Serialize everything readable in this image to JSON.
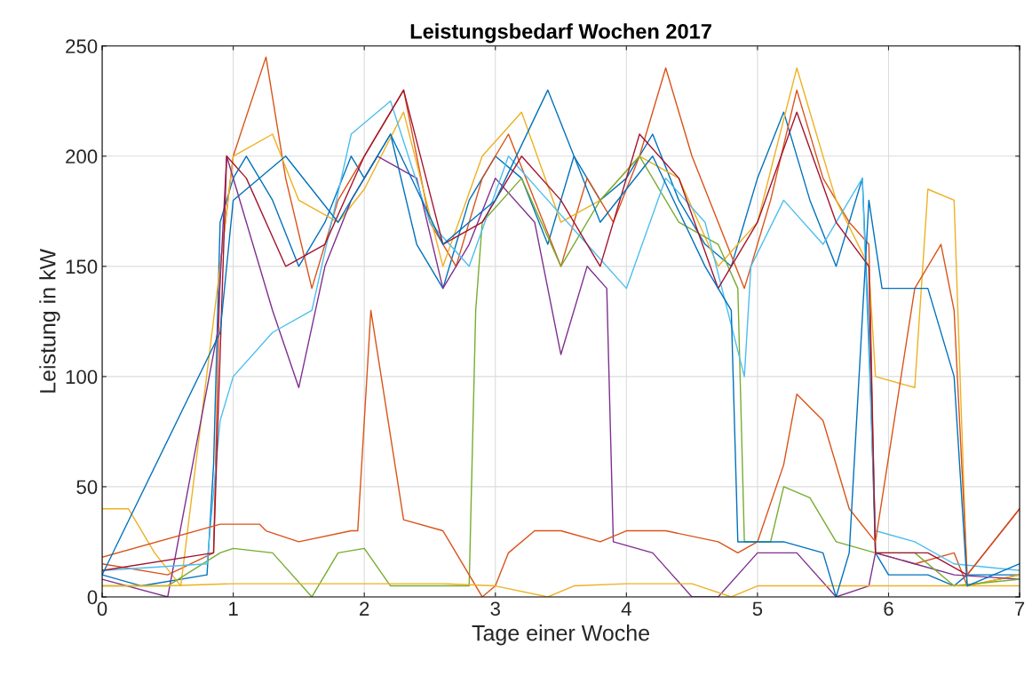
{
  "chart_data": {
    "type": "line",
    "title": "Leistungsbedarf Wochen 2017",
    "xlabel": "Tage einer Woche",
    "ylabel": "Leistung in kW",
    "xlim": [
      0,
      7
    ],
    "xticks": [
      0,
      1,
      2,
      3,
      4,
      5,
      6,
      7
    ],
    "ylim": [
      0,
      250
    ],
    "yticks": [
      0,
      50,
      100,
      150,
      200,
      250
    ],
    "grid": true,
    "line_style": "solid",
    "marker": "none",
    "series": [
      {
        "color": "#0072bd",
        "x": [
          0,
          0.3,
          0.8,
          0.85,
          0.9,
          1.0,
          1.1,
          1.3,
          1.5,
          1.7,
          1.9,
          2.0,
          2.2,
          2.4,
          2.6,
          2.8,
          3.0,
          3.2,
          3.4,
          3.6,
          3.8,
          4.0,
          4.2,
          4.4,
          4.6,
          4.8,
          5.0,
          5.2,
          5.4,
          5.6,
          5.8,
          5.85,
          5.9,
          6.0,
          6.3,
          6.5,
          6.6,
          7.0
        ],
        "values": [
          10,
          5,
          10,
          60,
          170,
          190,
          200,
          180,
          150,
          170,
          200,
          190,
          210,
          160,
          140,
          180,
          200,
          190,
          160,
          200,
          180,
          190,
          210,
          180,
          160,
          150,
          190,
          220,
          180,
          150,
          190,
          120,
          20,
          10,
          10,
          5,
          10,
          10
        ]
      },
      {
        "color": "#d95319",
        "x": [
          0,
          0.5,
          0.85,
          0.9,
          1.0,
          1.25,
          1.4,
          1.6,
          1.8,
          2.0,
          2.3,
          2.5,
          2.7,
          2.9,
          3.1,
          3.3,
          3.5,
          3.7,
          3.9,
          4.1,
          4.3,
          4.5,
          4.7,
          4.9,
          5.1,
          5.3,
          5.5,
          5.7,
          5.85,
          5.9,
          6.2,
          6.5,
          6.6,
          7
        ],
        "values": [
          15,
          10,
          20,
          150,
          200,
          245,
          190,
          140,
          180,
          200,
          230,
          170,
          150,
          190,
          210,
          180,
          150,
          190,
          170,
          200,
          240,
          200,
          170,
          140,
          180,
          230,
          190,
          170,
          160,
          20,
          15,
          20,
          5,
          10
        ]
      },
      {
        "color": "#edb120",
        "x": [
          0,
          0.2,
          0.4,
          0.6,
          0.9,
          1.0,
          1.3,
          1.5,
          1.8,
          2.0,
          2.3,
          2.6,
          2.9,
          3.2,
          3.5,
          3.8,
          4.1,
          4.4,
          4.7,
          5.0,
          5.3,
          5.6,
          5.85,
          5.9,
          6.2,
          6.3,
          6.5,
          6.6,
          7
        ],
        "values": [
          40,
          40,
          20,
          5,
          150,
          200,
          210,
          180,
          170,
          185,
          220,
          150,
          200,
          220,
          170,
          180,
          200,
          190,
          150,
          170,
          240,
          180,
          150,
          100,
          95,
          185,
          180,
          5,
          10
        ]
      },
      {
        "color": "#7e2f8e",
        "x": [
          0,
          0.5,
          0.88,
          0.95,
          1.1,
          1.3,
          1.5,
          1.7,
          1.9,
          2.1,
          2.4,
          2.6,
          2.8,
          3.0,
          3.3,
          3.5,
          3.7,
          3.85,
          3.9,
          4.2,
          4.5,
          4.7,
          5.0,
          5.3,
          5.6,
          5.85,
          5.9,
          6.2,
          6.5,
          7
        ],
        "values": [
          8,
          0,
          120,
          200,
          170,
          130,
          95,
          150,
          180,
          200,
          190,
          140,
          160,
          190,
          170,
          110,
          150,
          140,
          25,
          20,
          0,
          0,
          20,
          20,
          0,
          5,
          20,
          15,
          10,
          8
        ]
      },
      {
        "color": "#77ac30",
        "x": [
          0,
          0.5,
          0.9,
          1.0,
          1.3,
          1.6,
          1.8,
          2.0,
          2.2,
          2.5,
          2.8,
          2.85,
          2.9,
          3.2,
          3.5,
          3.8,
          4.1,
          4.4,
          4.7,
          4.85,
          4.9,
          5.1,
          5.2,
          5.4,
          5.6,
          5.9,
          6.2,
          6.5,
          7
        ],
        "values": [
          5,
          5,
          20,
          22,
          20,
          0,
          20,
          22,
          5,
          5,
          5,
          130,
          170,
          190,
          150,
          180,
          200,
          170,
          160,
          140,
          25,
          25,
          50,
          45,
          25,
          20,
          20,
          5,
          8
        ]
      },
      {
        "color": "#4dbeee",
        "x": [
          0,
          0.8,
          0.9,
          1.0,
          1.3,
          1.6,
          1.9,
          2.2,
          2.5,
          2.8,
          3.1,
          3.4,
          3.7,
          4.0,
          4.3,
          4.6,
          4.9,
          4.95,
          5.2,
          5.5,
          5.8,
          5.9,
          6.2,
          6.5,
          7
        ],
        "values": [
          12,
          15,
          80,
          100,
          120,
          130,
          210,
          225,
          170,
          150,
          200,
          180,
          160,
          140,
          190,
          170,
          100,
          150,
          180,
          160,
          190,
          30,
          25,
          15,
          12
        ]
      },
      {
        "color": "#a2142f",
        "x": [
          0,
          0.85,
          0.95,
          1.1,
          1.4,
          1.7,
          2.0,
          2.3,
          2.6,
          2.9,
          3.2,
          3.5,
          3.8,
          4.1,
          4.4,
          4.7,
          5.0,
          5.3,
          5.6,
          5.85,
          5.9,
          6.3,
          6.6,
          7
        ],
        "values": [
          12,
          20,
          200,
          190,
          150,
          160,
          200,
          230,
          160,
          170,
          200,
          180,
          150,
          210,
          190,
          140,
          170,
          220,
          170,
          150,
          20,
          20,
          10,
          40
        ]
      },
      {
        "color": "#d95319",
        "x": [
          0,
          0.9,
          1.2,
          1.25,
          1.5,
          1.9,
          1.95,
          2.05,
          2.3,
          2.6,
          2.9,
          3.0,
          3.1,
          3.3,
          3.5,
          3.8,
          4.0,
          4.3,
          4.7,
          4.85,
          5.0,
          5.2,
          5.3,
          5.5,
          5.7,
          5.9,
          6.2,
          6.4,
          6.5,
          6.6,
          7
        ],
        "values": [
          18,
          33,
          33,
          30,
          25,
          30,
          30,
          130,
          35,
          30,
          0,
          5,
          20,
          30,
          30,
          25,
          30,
          30,
          25,
          20,
          25,
          60,
          92,
          80,
          40,
          25,
          140,
          160,
          130,
          10,
          40
        ]
      },
      {
        "color": "#edb120",
        "x": [
          0,
          0.5,
          1,
          2,
          2.6,
          3,
          3.4,
          3.6,
          4,
          4.5,
          4.8,
          5,
          6,
          6.5,
          7
        ],
        "values": [
          5,
          5,
          6,
          6,
          6,
          5,
          0,
          5,
          6,
          6,
          0,
          5,
          5,
          5,
          5
        ]
      },
      {
        "color": "#0072bd",
        "x": [
          0,
          0.9,
          1.0,
          1.4,
          1.8,
          2.2,
          2.6,
          3.0,
          3.4,
          3.8,
          4.2,
          4.6,
          4.8,
          4.85,
          5.2,
          5.5,
          5.6,
          5.7,
          5.85,
          5.95,
          6.3,
          6.5,
          6.6,
          7
        ],
        "values": [
          10,
          120,
          180,
          200,
          170,
          210,
          160,
          180,
          230,
          170,
          200,
          150,
          130,
          25,
          25,
          20,
          0,
          20,
          180,
          140,
          140,
          100,
          5,
          15
        ]
      }
    ]
  }
}
